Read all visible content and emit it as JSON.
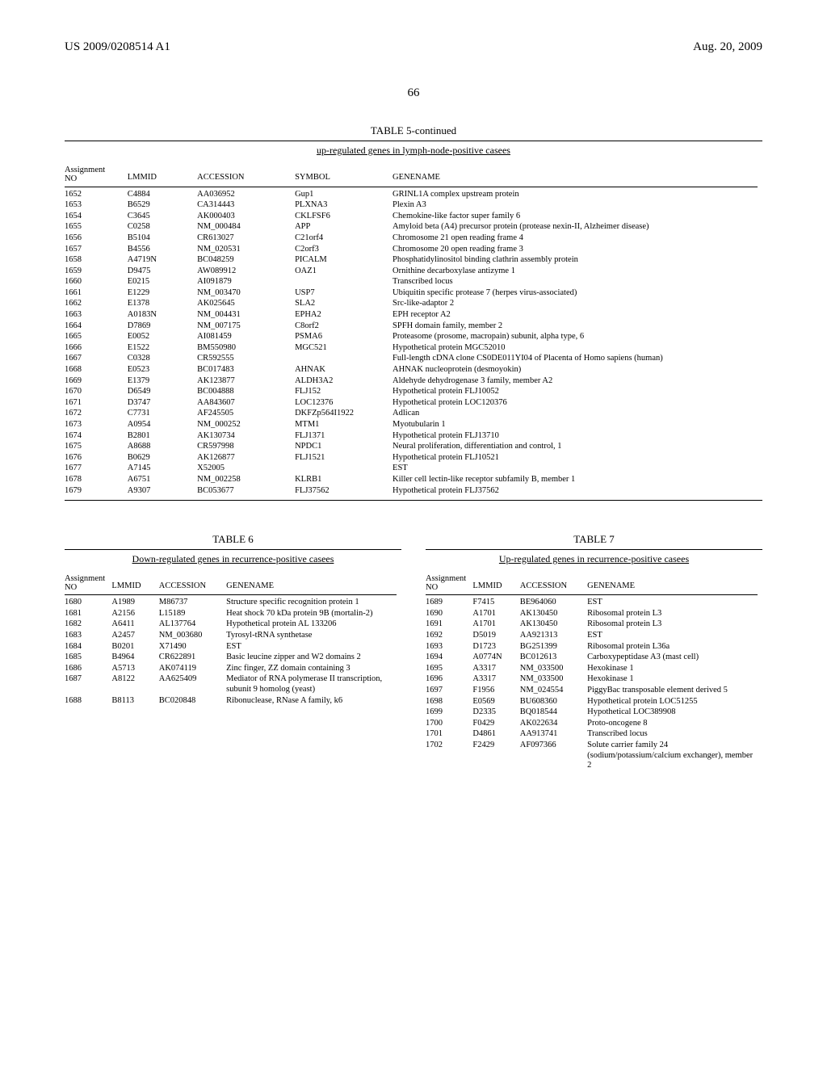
{
  "header": {
    "left": "US 2009/0208514 A1",
    "right": "Aug. 20, 2009"
  },
  "page_number": "66",
  "table5": {
    "title": "TABLE 5-continued",
    "subtitle": "up-regulated genes in lymph-node-positive casees",
    "columns": {
      "no": [
        "Assignment",
        "NO"
      ],
      "lmmid": "LMMID",
      "accession": "ACCESSION",
      "symbol": "SYMBOL",
      "genename": "GENENAME"
    },
    "rows": [
      {
        "no": "1652",
        "lmmid": "C4884",
        "acc": "AA036952",
        "sym": "Gup1",
        "gene": "GRINL1A complex upstream protein"
      },
      {
        "no": "1653",
        "lmmid": "B6529",
        "acc": "CA314443",
        "sym": "PLXNA3",
        "gene": "Plexin A3"
      },
      {
        "no": "1654",
        "lmmid": "C3645",
        "acc": "AK000403",
        "sym": "CKLFSF6",
        "gene": "Chemokine-like factor super family 6"
      },
      {
        "no": "1655",
        "lmmid": "C0258",
        "acc": "NM_000484",
        "sym": "APP",
        "gene": "Amyloid beta (A4) precursor protein (protease nexin-II, Alzheimer disease)"
      },
      {
        "no": "1656",
        "lmmid": "B5104",
        "acc": "CR613027",
        "sym": "C21orf4",
        "gene": "Chromosome 21 open reading frame 4"
      },
      {
        "no": "1657",
        "lmmid": "B4556",
        "acc": "NM_020531",
        "sym": "C2orf3",
        "gene": "Chromosome 20 open reading frame 3"
      },
      {
        "no": "1658",
        "lmmid": "A4719N",
        "acc": "BC048259",
        "sym": "PICALM",
        "gene": "Phosphatidylinositol binding clathrin assembly protein"
      },
      {
        "no": "1659",
        "lmmid": "D9475",
        "acc": "AW089912",
        "sym": "OAZ1",
        "gene": "Ornithine decarboxylase antizyme 1"
      },
      {
        "no": "1660",
        "lmmid": "E0215",
        "acc": "AI091879",
        "sym": "",
        "gene": "Transcribed locus"
      },
      {
        "no": "1661",
        "lmmid": "E1229",
        "acc": "NM_003470",
        "sym": "USP7",
        "gene": "Ubiquitin specific protease 7 (herpes virus-associated)"
      },
      {
        "no": "1662",
        "lmmid": "E1378",
        "acc": "AK025645",
        "sym": "SLA2",
        "gene": "Src-like-adaptor 2"
      },
      {
        "no": "1663",
        "lmmid": "A0183N",
        "acc": "NM_004431",
        "sym": "EPHA2",
        "gene": "EPH receptor A2"
      },
      {
        "no": "1664",
        "lmmid": "D7869",
        "acc": "NM_007175",
        "sym": "C8orf2",
        "gene": "SPFH domain family, member 2"
      },
      {
        "no": "1665",
        "lmmid": "E0052",
        "acc": "AI081459",
        "sym": "PSMA6",
        "gene": "Proteasome (prosome, macropain) subunit, alpha type, 6"
      },
      {
        "no": "1666",
        "lmmid": "E1522",
        "acc": "BM550980",
        "sym": "MGC521",
        "gene": "Hypothetical protein MGC52010"
      },
      {
        "no": "1667",
        "lmmid": "C0328",
        "acc": "CR592555",
        "sym": "",
        "gene": "Full-length cDNA clone CS0DE011YI04 of Placenta of Homo sapiens (human)"
      },
      {
        "no": "1668",
        "lmmid": "E0523",
        "acc": "BC017483",
        "sym": "AHNAK",
        "gene": "AHNAK nucleoprotein (desmoyokin)"
      },
      {
        "no": "1669",
        "lmmid": "E1379",
        "acc": "AK123877",
        "sym": "ALDH3A2",
        "gene": "Aldehyde dehydrogenase 3 family, member A2"
      },
      {
        "no": "1670",
        "lmmid": "D6549",
        "acc": "BC004888",
        "sym": "FLJ152",
        "gene": "Hypothetical protein FLJ10052"
      },
      {
        "no": "1671",
        "lmmid": "D3747",
        "acc": "AA843607",
        "sym": "LOC12376",
        "gene": "Hypothetical protein LOC120376"
      },
      {
        "no": "1672",
        "lmmid": "C7731",
        "acc": "AF245505",
        "sym": "DKFZp564I1922",
        "gene": "Adlican"
      },
      {
        "no": "1673",
        "lmmid": "A0954",
        "acc": "NM_000252",
        "sym": "MTM1",
        "gene": "Myotubularin 1"
      },
      {
        "no": "1674",
        "lmmid": "B2801",
        "acc": "AK130734",
        "sym": "FLJ1371",
        "gene": "Hypothetical protein FLJ13710"
      },
      {
        "no": "1675",
        "lmmid": "A8688",
        "acc": "CR597998",
        "sym": "NPDC1",
        "gene": "Neural proliferation, differentiation and control, 1"
      },
      {
        "no": "1676",
        "lmmid": "B0629",
        "acc": "AK126877",
        "sym": "FLJ1521",
        "gene": "Hypothetical protein FLJ10521"
      },
      {
        "no": "1677",
        "lmmid": "A7145",
        "acc": "X52005",
        "sym": "",
        "gene": "EST"
      },
      {
        "no": "1678",
        "lmmid": "A6751",
        "acc": "NM_002258",
        "sym": "KLRB1",
        "gene": "Killer cell lectin-like receptor subfamily B, member 1"
      },
      {
        "no": "1679",
        "lmmid": "A9307",
        "acc": "BC053677",
        "sym": "FLJ37562",
        "gene": "Hypothetical protein FLJ37562"
      }
    ]
  },
  "table6": {
    "title": "TABLE 6",
    "subtitle": "Down-regulated genes in recurrence-positive casees",
    "columns": {
      "no": [
        "Assignment",
        "NO"
      ],
      "lmmid": "LMMID",
      "accession": "ACCESSION",
      "genename": "GENENAME"
    },
    "rows": [
      {
        "no": "1680",
        "lmmid": "A1989",
        "acc": "M86737",
        "gene": "Structure specific recognition protein 1"
      },
      {
        "no": "1681",
        "lmmid": "A2156",
        "acc": "L15189",
        "gene": "Heat shock 70 kDa protein 9B (mortalin-2)"
      },
      {
        "no": "1682",
        "lmmid": "A6411",
        "acc": "AL137764",
        "gene": "Hypothetical protein AL 133206"
      },
      {
        "no": "1683",
        "lmmid": "A2457",
        "acc": "NM_003680",
        "gene": "Tyrosyl-tRNA synthetase"
      },
      {
        "no": "1684",
        "lmmid": "B0201",
        "acc": "X71490",
        "gene": "EST"
      },
      {
        "no": "1685",
        "lmmid": "B4964",
        "acc": "CR622891",
        "gene": "Basic leucine zipper and W2 domains 2"
      },
      {
        "no": "1686",
        "lmmid": "A5713",
        "acc": "AK074119",
        "gene": "Zinc finger, ZZ domain containing 3"
      },
      {
        "no": "1687",
        "lmmid": "A8122",
        "acc": "AA625409",
        "gene": "Mediator of RNA polymerase II transcription, subunit 9 homolog (yeast)"
      },
      {
        "no": "1688",
        "lmmid": "B8113",
        "acc": "BC020848",
        "gene": "Ribonuclease, RNase A family, k6"
      }
    ]
  },
  "table7": {
    "title": "TABLE 7",
    "subtitle": "Up-regulated genes in recurrence-positive casees",
    "columns": {
      "no": [
        "Assignment",
        "NO"
      ],
      "lmmid": "LMMID",
      "accession": "ACCESSION",
      "genename": "GENENAME"
    },
    "rows": [
      {
        "no": "1689",
        "lmmid": "F7415",
        "acc": "BE964060",
        "gene": "EST"
      },
      {
        "no": "1690",
        "lmmid": "A1701",
        "acc": "AK130450",
        "gene": "Ribosomal protein L3"
      },
      {
        "no": "1691",
        "lmmid": "A1701",
        "acc": "AK130450",
        "gene": "Ribosomal protein L3"
      },
      {
        "no": "1692",
        "lmmid": "D5019",
        "acc": "AA921313",
        "gene": "EST"
      },
      {
        "no": "1693",
        "lmmid": "D1723",
        "acc": "BG251399",
        "gene": "Ribosomal protein L36a"
      },
      {
        "no": "1694",
        "lmmid": "A0774N",
        "acc": "BC012613",
        "gene": "Carboxypeptidase A3 (mast cell)"
      },
      {
        "no": "1695",
        "lmmid": "A3317",
        "acc": "NM_033500",
        "gene": "Hexokinase 1"
      },
      {
        "no": "1696",
        "lmmid": "A3317",
        "acc": "NM_033500",
        "gene": "Hexokinase 1"
      },
      {
        "no": "1697",
        "lmmid": "F1956",
        "acc": "NM_024554",
        "gene": "PiggyBac transposable element derived 5"
      },
      {
        "no": "1698",
        "lmmid": "E0569",
        "acc": "BU608360",
        "gene": "Hypothetical protein LOC51255"
      },
      {
        "no": "1699",
        "lmmid": "D2335",
        "acc": "BQ018544",
        "gene": "Hypothetical LOC389908"
      },
      {
        "no": "1700",
        "lmmid": "F0429",
        "acc": "AK022634",
        "gene": "Proto-oncogene 8"
      },
      {
        "no": "1701",
        "lmmid": "D4861",
        "acc": "AA913741",
        "gene": "Transcribed locus"
      },
      {
        "no": "1702",
        "lmmid": "F2429",
        "acc": "AF097366",
        "gene": "Solute carrier family 24 (sodium/potassium/calcium exchanger), member 2"
      }
    ]
  }
}
